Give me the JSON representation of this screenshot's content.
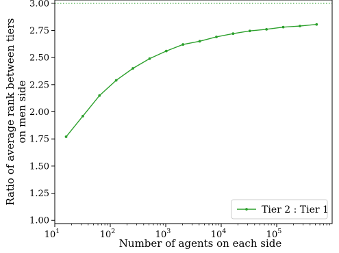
{
  "chart_data": {
    "type": "line",
    "xlabel": "Number of agents on each side",
    "ylabel_lines": [
      "Ratio of average rank between tiers",
      "on men side"
    ],
    "xscale": "log",
    "xlim": [
      10,
      1000000
    ],
    "ylim": [
      0.97,
      3.03
    ],
    "x_ticks": [
      {
        "value": 10,
        "base": "10",
        "exp": "1"
      },
      {
        "value": 100,
        "base": "10",
        "exp": "2"
      },
      {
        "value": 1000,
        "base": "10",
        "exp": "3"
      },
      {
        "value": 10000,
        "base": "10",
        "exp": "4"
      },
      {
        "value": 100000,
        "base": "10",
        "exp": "5"
      }
    ],
    "y_ticks": [
      "1.00",
      "1.25",
      "1.50",
      "1.75",
      "2.00",
      "2.25",
      "2.50",
      "2.75",
      "3.00"
    ],
    "grid": false,
    "legend_position": "lower-right",
    "reference_line": {
      "y": 3.0,
      "style": "dotted",
      "color": "#2ca02c"
    },
    "series": [
      {
        "name": "Tier 2 : Tier 1",
        "color": "#2ca02c",
        "marker": "dot",
        "x": [
          16,
          32,
          64,
          128,
          256,
          512,
          1024,
          2048,
          4096,
          8192,
          16384,
          32768,
          65536,
          131072,
          262144,
          524288
        ],
        "values": [
          1.77,
          1.96,
          2.15,
          2.29,
          2.4,
          2.49,
          2.56,
          2.62,
          2.65,
          2.69,
          2.72,
          2.745,
          2.76,
          2.78,
          2.79,
          2.805
        ]
      }
    ]
  }
}
